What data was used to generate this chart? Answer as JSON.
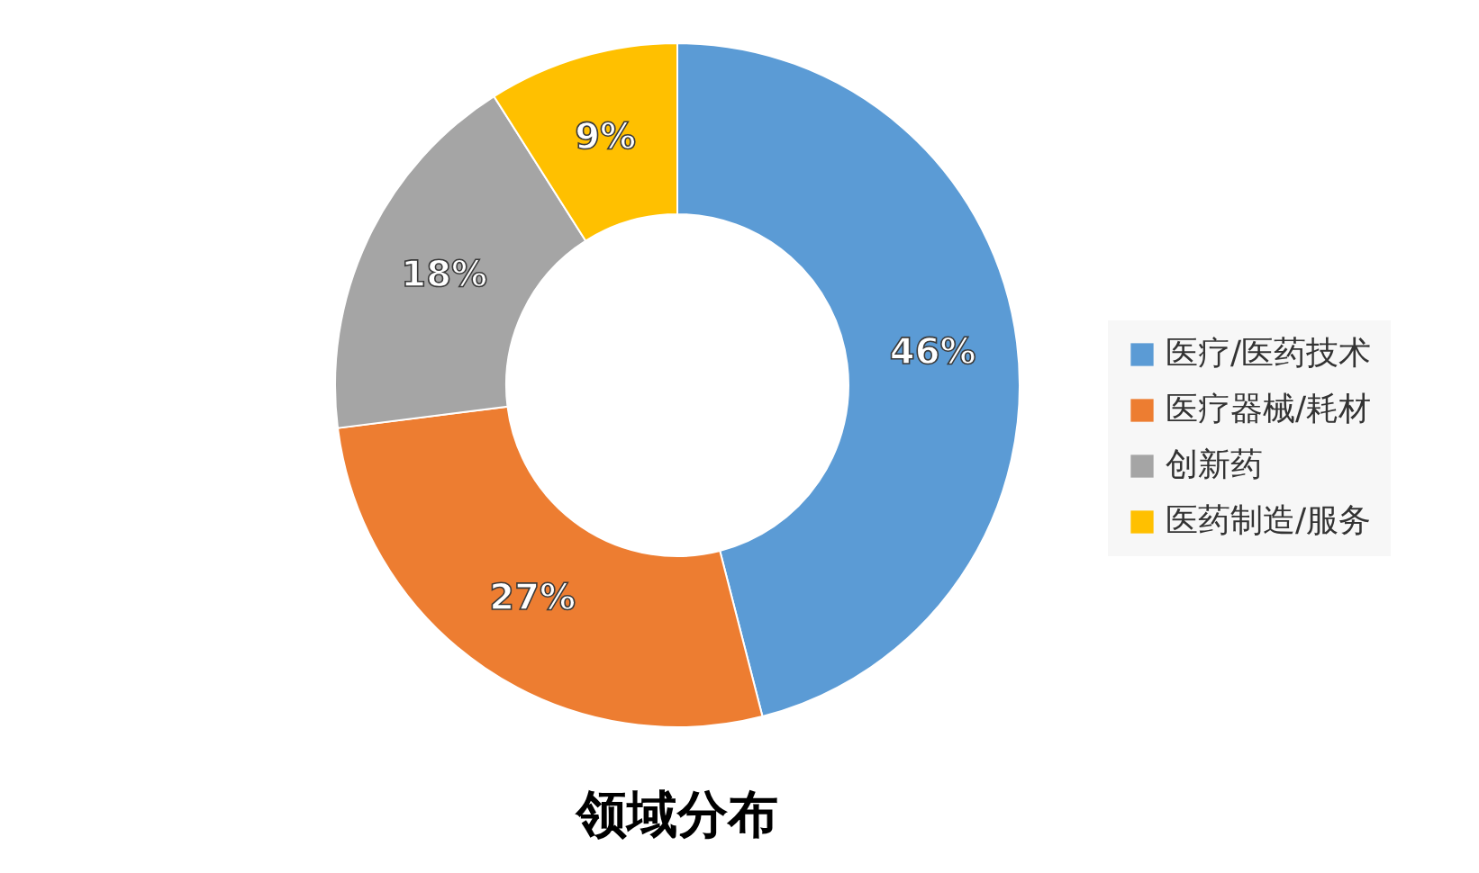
{
  "chart_data": {
    "type": "donut",
    "title": "领域分布",
    "categories": [
      "医疗/医药技术",
      "医疗器械/耗材",
      "创新药",
      "医药制造/服务"
    ],
    "values": [
      46,
      27,
      18,
      9
    ],
    "colors": [
      "#5b9bd5",
      "#ed7d31",
      "#a5a5a5",
      "#ffc000"
    ],
    "value_labels": [
      "46%",
      "27%",
      "18%",
      "9%"
    ],
    "legend": "right"
  }
}
